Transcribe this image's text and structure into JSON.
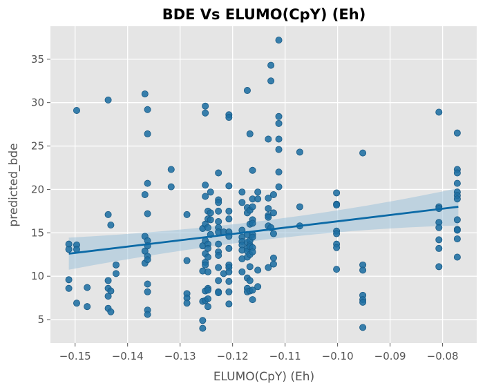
{
  "chart_data": {
    "type": "scatter",
    "title": "BDE Vs ELUMO(CpY) (Eh)",
    "xlabel": "ELUMO(CpY) (Eh)",
    "ylabel": "predicted_bde",
    "xlim": [
      -0.1547,
      -0.0735
    ],
    "ylim": [
      2.3,
      38.8
    ],
    "xticks": [
      -0.15,
      -0.14,
      -0.13,
      -0.12,
      -0.11,
      -0.1,
      -0.09,
      -0.08
    ],
    "xtick_labels": [
      "−0.15",
      "−0.14",
      "−0.13",
      "−0.12",
      "−0.11",
      "−0.10",
      "−0.09",
      "−0.08"
    ],
    "yticks": [
      5,
      10,
      15,
      20,
      25,
      30,
      35
    ],
    "ytick_labels": [
      "5",
      "10",
      "15",
      "20",
      "25",
      "30",
      "35"
    ],
    "grid": true,
    "colors": {
      "background": "#e5e5e5",
      "grid": "#ffffff",
      "points": "#1f6fa3",
      "point_edge": "#185a86",
      "regression_line": "#0c6aa6",
      "confidence_band": "#9ec3da"
    },
    "regression": {
      "x": [
        -0.1512,
        -0.077
      ],
      "y": [
        12.6,
        18.0
      ],
      "ci_upper": [
        14.5,
        20.2
      ],
      "ci_lower": [
        10.8,
        15.9
      ]
    },
    "points": [
      [
        -0.1512,
        13.7
      ],
      [
        -0.1512,
        13.1
      ],
      [
        -0.1512,
        9.6
      ],
      [
        -0.1512,
        8.6
      ],
      [
        -0.1497,
        29.1
      ],
      [
        -0.1497,
        13.6
      ],
      [
        -0.1497,
        13.1
      ],
      [
        -0.1497,
        6.9
      ],
      [
        -0.1477,
        8.7
      ],
      [
        -0.1477,
        6.5
      ],
      [
        -0.1437,
        30.3
      ],
      [
        -0.1437,
        17.1
      ],
      [
        -0.1437,
        9.5
      ],
      [
        -0.1437,
        8.6
      ],
      [
        -0.1437,
        7.7
      ],
      [
        -0.1437,
        6.3
      ],
      [
        -0.1432,
        15.9
      ],
      [
        -0.1432,
        8.3
      ],
      [
        -0.1432,
        5.9
      ],
      [
        -0.1422,
        11.3
      ],
      [
        -0.1422,
        10.3
      ],
      [
        -0.1367,
        31.0
      ],
      [
        -0.1367,
        19.4
      ],
      [
        -0.1367,
        14.6
      ],
      [
        -0.1367,
        12.9
      ],
      [
        -0.1367,
        11.5
      ],
      [
        -0.1362,
        29.2
      ],
      [
        -0.1362,
        26.4
      ],
      [
        -0.1362,
        20.7
      ],
      [
        -0.1362,
        17.2
      ],
      [
        -0.1362,
        14.1
      ],
      [
        -0.1362,
        13.5
      ],
      [
        -0.1362,
        12.3
      ],
      [
        -0.1362,
        11.9
      ],
      [
        -0.1362,
        9.1
      ],
      [
        -0.1362,
        8.2
      ],
      [
        -0.1362,
        6.1
      ],
      [
        -0.1362,
        5.6
      ],
      [
        -0.1317,
        22.3
      ],
      [
        -0.1317,
        20.3
      ],
      [
        -0.1287,
        17.1
      ],
      [
        -0.1287,
        11.8
      ],
      [
        -0.1287,
        8.0
      ],
      [
        -0.1287,
        7.5
      ],
      [
        -0.1287,
        6.9
      ],
      [
        -0.1257,
        4.9
      ],
      [
        -0.1257,
        4.0
      ],
      [
        -0.1257,
        7.1
      ],
      [
        -0.1257,
        10.6
      ],
      [
        -0.1257,
        13.5
      ],
      [
        -0.1257,
        15.5
      ],
      [
        -0.1252,
        29.6
      ],
      [
        -0.1252,
        28.8
      ],
      [
        -0.1252,
        20.5
      ],
      [
        -0.1252,
        19.2
      ],
      [
        -0.1252,
        16.0
      ],
      [
        -0.1252,
        14.1
      ],
      [
        -0.1252,
        12.6
      ],
      [
        -0.1252,
        11.6
      ],
      [
        -0.1252,
        11.3
      ],
      [
        -0.1252,
        8.3
      ],
      [
        -0.1252,
        7.2
      ],
      [
        -0.1247,
        17.5
      ],
      [
        -0.1247,
        16.6
      ],
      [
        -0.1247,
        15.6
      ],
      [
        -0.1247,
        13.7
      ],
      [
        -0.1247,
        13.2
      ],
      [
        -0.1247,
        12.2
      ],
      [
        -0.1247,
        10.5
      ],
      [
        -0.1247,
        8.6
      ],
      [
        -0.1247,
        8.4
      ],
      [
        -0.1247,
        7.4
      ],
      [
        -0.1247,
        6.5
      ],
      [
        -0.1242,
        19.7
      ],
      [
        -0.1242,
        17.3
      ],
      [
        -0.1242,
        16.5
      ],
      [
        -0.1242,
        14.8
      ],
      [
        -0.1227,
        21.9
      ],
      [
        -0.1227,
        18.8
      ],
      [
        -0.1227,
        18.5
      ],
      [
        -0.1227,
        17.5
      ],
      [
        -0.1227,
        16.3
      ],
      [
        -0.1227,
        15.6
      ],
      [
        -0.1227,
        15.1
      ],
      [
        -0.1227,
        13.7
      ],
      [
        -0.1227,
        12.8
      ],
      [
        -0.1227,
        12.4
      ],
      [
        -0.1227,
        11.0
      ],
      [
        -0.1227,
        9.5
      ],
      [
        -0.1227,
        8.2
      ],
      [
        -0.1227,
        8.1
      ],
      [
        -0.1217,
        15.1
      ],
      [
        -0.1217,
        10.3
      ],
      [
        -0.1207,
        28.6
      ],
      [
        -0.1207,
        28.3
      ],
      [
        -0.1207,
        20.4
      ],
      [
        -0.1207,
        17.5
      ],
      [
        -0.1207,
        16.6
      ],
      [
        -0.1207,
        15.1
      ],
      [
        -0.1207,
        14.6
      ],
      [
        -0.1207,
        13.2
      ],
      [
        -0.1207,
        11.3
      ],
      [
        -0.1207,
        11.0
      ],
      [
        -0.1207,
        10.5
      ],
      [
        -0.1207,
        9.4
      ],
      [
        -0.1207,
        8.2
      ],
      [
        -0.1207,
        6.8
      ],
      [
        -0.1182,
        19.7
      ],
      [
        -0.1182,
        18.5
      ],
      [
        -0.1182,
        15.3
      ],
      [
        -0.1182,
        14.5
      ],
      [
        -0.1182,
        14.0
      ],
      [
        -0.1182,
        13.6
      ],
      [
        -0.1182,
        13.0
      ],
      [
        -0.1182,
        12.0
      ],
      [
        -0.1182,
        10.5
      ],
      [
        -0.1172,
        31.4
      ],
      [
        -0.1172,
        17.9
      ],
      [
        -0.1172,
        17.3
      ],
      [
        -0.1172,
        14.8
      ],
      [
        -0.1172,
        13.9
      ],
      [
        -0.1172,
        13.2
      ],
      [
        -0.1172,
        12.9
      ],
      [
        -0.1172,
        12.2
      ],
      [
        -0.1172,
        9.8
      ],
      [
        -0.1172,
        8.6
      ],
      [
        -0.1172,
        8.2
      ],
      [
        -0.1167,
        26.4
      ],
      [
        -0.1167,
        17.6
      ],
      [
        -0.1167,
        16.0
      ],
      [
        -0.1167,
        14.1
      ],
      [
        -0.1167,
        13.6
      ],
      [
        -0.1167,
        13.4
      ],
      [
        -0.1167,
        12.5
      ],
      [
        -0.1167,
        11.1
      ],
      [
        -0.1167,
        9.5
      ],
      [
        -0.1167,
        8.3
      ],
      [
        -0.1162,
        22.2
      ],
      [
        -0.1162,
        18.9
      ],
      [
        -0.1162,
        18.0
      ],
      [
        -0.1162,
        16.5
      ],
      [
        -0.1162,
        16.1
      ],
      [
        -0.1162,
        14.8
      ],
      [
        -0.1162,
        14.5
      ],
      [
        -0.1162,
        13.3
      ],
      [
        -0.1162,
        12.8
      ],
      [
        -0.1162,
        8.4
      ],
      [
        -0.1162,
        7.3
      ],
      [
        -0.1152,
        19.7
      ],
      [
        -0.1152,
        18.9
      ],
      [
        -0.1152,
        10.7
      ],
      [
        -0.1152,
        8.8
      ],
      [
        -0.1132,
        25.8
      ],
      [
        -0.1132,
        19.0
      ],
      [
        -0.1132,
        17.8
      ],
      [
        -0.1132,
        17.0
      ],
      [
        -0.1132,
        16.8
      ],
      [
        -0.1132,
        15.8
      ],
      [
        -0.1132,
        11.0
      ],
      [
        -0.1127,
        34.3
      ],
      [
        -0.1127,
        32.5
      ],
      [
        -0.1127,
        15.6
      ],
      [
        -0.1122,
        19.4
      ],
      [
        -0.1122,
        17.3
      ],
      [
        -0.1122,
        14.9
      ],
      [
        -0.1122,
        12.1
      ],
      [
        -0.1122,
        11.4
      ],
      [
        -0.1112,
        37.2
      ],
      [
        -0.1112,
        28.4
      ],
      [
        -0.1112,
        27.6
      ],
      [
        -0.1112,
        25.8
      ],
      [
        -0.1112,
        24.6
      ],
      [
        -0.1112,
        22.0
      ],
      [
        -0.1112,
        20.3
      ],
      [
        -0.1072,
        24.3
      ],
      [
        -0.1072,
        18.0
      ],
      [
        -0.1072,
        15.8
      ],
      [
        -0.1002,
        19.6
      ],
      [
        -0.1002,
        18.3
      ],
      [
        -0.1002,
        18.2
      ],
      [
        -0.1002,
        15.2
      ],
      [
        -0.1002,
        14.9
      ],
      [
        -0.1002,
        13.7
      ],
      [
        -0.1002,
        13.3
      ],
      [
        -0.1002,
        10.8
      ],
      [
        -0.0952,
        24.2
      ],
      [
        -0.0952,
        11.3
      ],
      [
        -0.0952,
        10.7
      ],
      [
        -0.0952,
        7.8
      ],
      [
        -0.0952,
        7.3
      ],
      [
        -0.0952,
        7.0
      ],
      [
        -0.0952,
        4.1
      ],
      [
        -0.0807,
        28.9
      ],
      [
        -0.0807,
        18.0
      ],
      [
        -0.0807,
        17.8
      ],
      [
        -0.0807,
        16.2
      ],
      [
        -0.0807,
        15.6
      ],
      [
        -0.0807,
        14.2
      ],
      [
        -0.0807,
        13.2
      ],
      [
        -0.0807,
        11.1
      ],
      [
        -0.0772,
        26.5
      ],
      [
        -0.0772,
        22.3
      ],
      [
        -0.0772,
        21.9
      ],
      [
        -0.0772,
        20.7
      ],
      [
        -0.0772,
        19.7
      ],
      [
        -0.0772,
        19.3
      ],
      [
        -0.0772,
        18.9
      ],
      [
        -0.0772,
        16.5
      ],
      [
        -0.0772,
        15.4
      ],
      [
        -0.0772,
        15.3
      ],
      [
        -0.0772,
        14.3
      ],
      [
        -0.0772,
        12.2
      ]
    ]
  }
}
